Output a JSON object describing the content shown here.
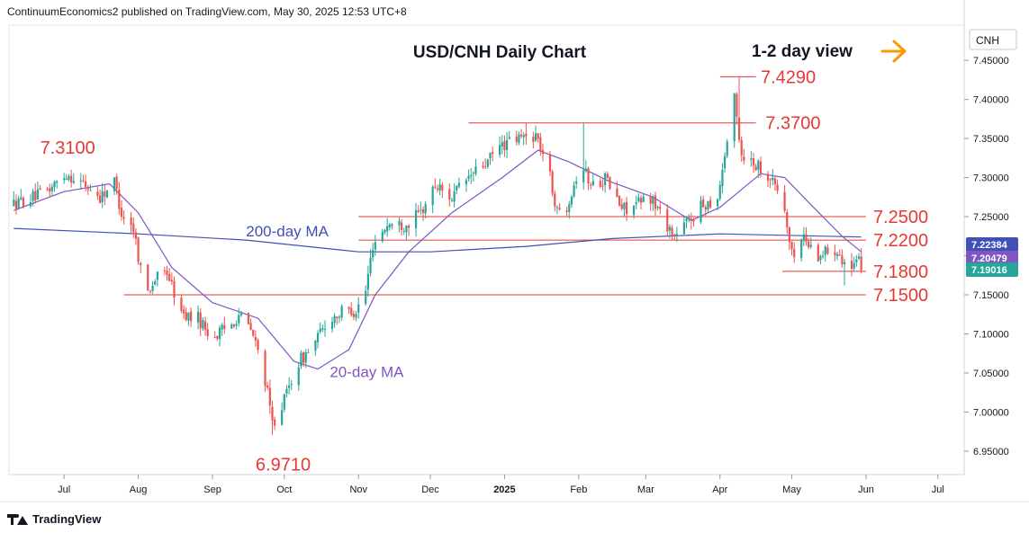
{
  "header": {
    "publisher": "ContinuumEconomics2 published on TradingView.com, May 30, 2025 12:53 UTC+8"
  },
  "footer": {
    "brand": "TradingView"
  },
  "chart_data": {
    "type": "candlestick",
    "title": "USD/CNH Daily Chart",
    "subtitle": "1-2 day view",
    "symbol": "CNH",
    "arrow_direction": "right",
    "colors": {
      "up": "#26a69a",
      "down": "#ef5350",
      "annotation": "#e53935",
      "ma20": "#7e57c2",
      "ma200": "#3f51b5",
      "arrow": "#ff9800",
      "line": "#e53935"
    },
    "ylim": [
      6.92,
      7.495
    ],
    "y_ticks": [
      "7.45000",
      "7.40000",
      "7.35000",
      "7.30000",
      "7.25000",
      "7.20000",
      "7.15000",
      "7.10000",
      "7.05000",
      "7.00000",
      "6.95000"
    ],
    "y_tick_values": [
      7.45,
      7.4,
      7.35,
      7.3,
      7.25,
      7.2,
      7.15,
      7.1,
      7.05,
      7.0,
      6.95
    ],
    "x_ticks": [
      {
        "label": "Jul",
        "date": "2024-07-01"
      },
      {
        "label": "Aug",
        "date": "2024-08-01"
      },
      {
        "label": "Sep",
        "date": "2024-09-01"
      },
      {
        "label": "Oct",
        "date": "2024-10-01"
      },
      {
        "label": "Nov",
        "date": "2024-11-01"
      },
      {
        "label": "Dec",
        "date": "2024-12-01"
      },
      {
        "label": "2025",
        "date": "2025-01-01"
      },
      {
        "label": "Feb",
        "date": "2025-02-01"
      },
      {
        "label": "Mar",
        "date": "2025-03-01"
      },
      {
        "label": "Apr",
        "date": "2025-04-01"
      },
      {
        "label": "May",
        "date": "2025-05-01"
      },
      {
        "label": "Jun",
        "date": "2025-06-01"
      },
      {
        "label": "Jul",
        "date": "2025-07-01"
      }
    ],
    "x_range": [
      "2024-06-08",
      "2025-07-12"
    ],
    "price_badges": [
      {
        "label": "7.22384",
        "value": 7.22384,
        "color": "#3f51b5"
      },
      {
        "label": "7.20479",
        "value": 7.20479,
        "color": "#7e57c2"
      },
      {
        "label": "7.19016",
        "value": 7.19016,
        "color": "#26a69a"
      }
    ],
    "level_lines": [
      {
        "value": 7.429,
        "from": "2025-04-01",
        "to": "2025-04-16"
      },
      {
        "value": 7.37,
        "from": "2024-12-17",
        "to": "2025-04-16"
      },
      {
        "value": 7.25,
        "from": "2024-11-01",
        "to": "2025-06-01"
      },
      {
        "value": 7.22,
        "from": "2024-11-01",
        "to": "2025-06-01"
      },
      {
        "value": 7.18,
        "from": "2025-04-27",
        "to": "2025-06-01"
      },
      {
        "value": 7.15,
        "from": "2024-07-26",
        "to": "2025-06-01"
      }
    ],
    "level_labels": [
      {
        "text": "7.4290",
        "date": "2025-04-18",
        "value": 7.429
      },
      {
        "text": "7.3700",
        "date": "2025-04-20",
        "value": 7.37
      },
      {
        "text": "7.3100",
        "date": "2024-06-21",
        "value": 7.31
      },
      {
        "text": "7.2500",
        "date": "2025-06-04",
        "value": 7.25
      },
      {
        "text": "7.2200",
        "date": "2025-06-04",
        "value": 7.22
      },
      {
        "text": "7.1800",
        "date": "2025-06-04",
        "value": 7.18
      },
      {
        "text": "7.1500",
        "date": "2025-06-04",
        "value": 7.15
      },
      {
        "text": "6.9710",
        "date": "2024-09-19",
        "value": 6.971
      }
    ],
    "series_labels": [
      {
        "text": "200-day MA",
        "date": "2024-09-15",
        "value": 7.225,
        "color": "#3f51b5"
      },
      {
        "text": "20-day MA",
        "date": "2024-10-20",
        "value": 7.045,
        "color": "#7e57c2"
      }
    ],
    "anchors": [
      {
        "date": "2024-06-10",
        "value": 7.265
      },
      {
        "date": "2024-06-24",
        "value": 7.28
      },
      {
        "date": "2024-07-03",
        "value": 7.305
      },
      {
        "date": "2024-07-10",
        "value": 7.292
      },
      {
        "date": "2024-07-17",
        "value": 7.275
      },
      {
        "date": "2024-07-23",
        "value": 7.295
      },
      {
        "date": "2024-07-26",
        "value": 7.255
      },
      {
        "date": "2024-07-31",
        "value": 7.235
      },
      {
        "date": "2024-08-05",
        "value": 7.15
      },
      {
        "date": "2024-08-09",
        "value": 7.17
      },
      {
        "date": "2024-08-14",
        "value": 7.18
      },
      {
        "date": "2024-08-20",
        "value": 7.125
      },
      {
        "date": "2024-08-27",
        "value": 7.12
      },
      {
        "date": "2024-09-02",
        "value": 7.095
      },
      {
        "date": "2024-09-09",
        "value": 7.11
      },
      {
        "date": "2024-09-13",
        "value": 7.125
      },
      {
        "date": "2024-09-18",
        "value": 7.105
      },
      {
        "date": "2024-09-23",
        "value": 7.06
      },
      {
        "date": "2024-09-27",
        "value": 6.985
      },
      {
        "date": "2024-10-02",
        "value": 7.015
      },
      {
        "date": "2024-10-07",
        "value": 7.06
      },
      {
        "date": "2024-10-14",
        "value": 7.085
      },
      {
        "date": "2024-10-21",
        "value": 7.12
      },
      {
        "date": "2024-10-28",
        "value": 7.13
      },
      {
        "date": "2024-11-01",
        "value": 7.13
      },
      {
        "date": "2024-11-05",
        "value": 7.155
      },
      {
        "date": "2024-11-08",
        "value": 7.215
      },
      {
        "date": "2024-11-14",
        "value": 7.24
      },
      {
        "date": "2024-11-22",
        "value": 7.24
      },
      {
        "date": "2024-11-28",
        "value": 7.255
      },
      {
        "date": "2024-12-04",
        "value": 7.29
      },
      {
        "date": "2024-12-11",
        "value": 7.275
      },
      {
        "date": "2024-12-18",
        "value": 7.3
      },
      {
        "date": "2024-12-26",
        "value": 7.32
      },
      {
        "date": "2024-12-31",
        "value": 7.34
      },
      {
        "date": "2025-01-08",
        "value": 7.35
      },
      {
        "date": "2025-01-15",
        "value": 7.355
      },
      {
        "date": "2025-01-20",
        "value": 7.315
      },
      {
        "date": "2025-01-24",
        "value": 7.255
      },
      {
        "date": "2025-01-28",
        "value": 7.265
      },
      {
        "date": "2025-02-03",
        "value": 7.32
      },
      {
        "date": "2025-02-07",
        "value": 7.29
      },
      {
        "date": "2025-02-13",
        "value": 7.3
      },
      {
        "date": "2025-02-20",
        "value": 7.26
      },
      {
        "date": "2025-02-26",
        "value": 7.265
      },
      {
        "date": "2025-03-04",
        "value": 7.275
      },
      {
        "date": "2025-03-10",
        "value": 7.245
      },
      {
        "date": "2025-03-14",
        "value": 7.225
      },
      {
        "date": "2025-03-20",
        "value": 7.245
      },
      {
        "date": "2025-03-26",
        "value": 7.265
      },
      {
        "date": "2025-04-01",
        "value": 7.275
      },
      {
        "date": "2025-04-04",
        "value": 7.33
      },
      {
        "date": "2025-04-08",
        "value": 7.4
      },
      {
        "date": "2025-04-11",
        "value": 7.33
      },
      {
        "date": "2025-04-16",
        "value": 7.32
      },
      {
        "date": "2025-04-22",
        "value": 7.305
      },
      {
        "date": "2025-04-28",
        "value": 7.275
      },
      {
        "date": "2025-05-02",
        "value": 7.2
      },
      {
        "date": "2025-05-07",
        "value": 7.225
      },
      {
        "date": "2025-05-12",
        "value": 7.2
      },
      {
        "date": "2025-05-16",
        "value": 7.205
      },
      {
        "date": "2025-05-21",
        "value": 7.21
      },
      {
        "date": "2025-05-26",
        "value": 7.18
      },
      {
        "date": "2025-05-30",
        "value": 7.19
      }
    ],
    "extremes": [
      {
        "date": "2025-04-09",
        "high": 7.429
      },
      {
        "date": "2024-09-26",
        "low": 6.971
      },
      {
        "date": "2024-07-04",
        "high": 7.31
      },
      {
        "date": "2025-01-10",
        "high": 7.37
      },
      {
        "date": "2025-02-03",
        "high": 7.37
      },
      {
        "date": "2025-05-23",
        "low": 7.162
      }
    ],
    "ma20": [
      {
        "date": "2024-06-10",
        "value": 7.258
      },
      {
        "date": "2024-07-01",
        "value": 7.282
      },
      {
        "date": "2024-07-20",
        "value": 7.292
      },
      {
        "date": "2024-08-01",
        "value": 7.255
      },
      {
        "date": "2024-08-15",
        "value": 7.185
      },
      {
        "date": "2024-09-01",
        "value": 7.14
      },
      {
        "date": "2024-09-20",
        "value": 7.12
      },
      {
        "date": "2024-10-05",
        "value": 7.065
      },
      {
        "date": "2024-10-15",
        "value": 7.055
      },
      {
        "date": "2024-10-28",
        "value": 7.08
      },
      {
        "date": "2024-11-08",
        "value": 7.15
      },
      {
        "date": "2024-11-22",
        "value": 7.205
      },
      {
        "date": "2024-12-10",
        "value": 7.255
      },
      {
        "date": "2024-12-31",
        "value": 7.3
      },
      {
        "date": "2025-01-15",
        "value": 7.335
      },
      {
        "date": "2025-01-28",
        "value": 7.32
      },
      {
        "date": "2025-02-14",
        "value": 7.295
      },
      {
        "date": "2025-03-04",
        "value": 7.275
      },
      {
        "date": "2025-03-20",
        "value": 7.245
      },
      {
        "date": "2025-04-01",
        "value": 7.262
      },
      {
        "date": "2025-04-18",
        "value": 7.305
      },
      {
        "date": "2025-04-28",
        "value": 7.3
      },
      {
        "date": "2025-05-10",
        "value": 7.262
      },
      {
        "date": "2025-05-22",
        "value": 7.225
      },
      {
        "date": "2025-05-30",
        "value": 7.205
      }
    ],
    "ma200": [
      {
        "date": "2024-06-10",
        "value": 7.235
      },
      {
        "date": "2024-08-01",
        "value": 7.228
      },
      {
        "date": "2024-09-15",
        "value": 7.22
      },
      {
        "date": "2024-11-01",
        "value": 7.205
      },
      {
        "date": "2024-12-01",
        "value": 7.205
      },
      {
        "date": "2025-01-10",
        "value": 7.212
      },
      {
        "date": "2025-02-15",
        "value": 7.222
      },
      {
        "date": "2025-04-01",
        "value": 7.228
      },
      {
        "date": "2025-05-30",
        "value": 7.224
      }
    ]
  }
}
